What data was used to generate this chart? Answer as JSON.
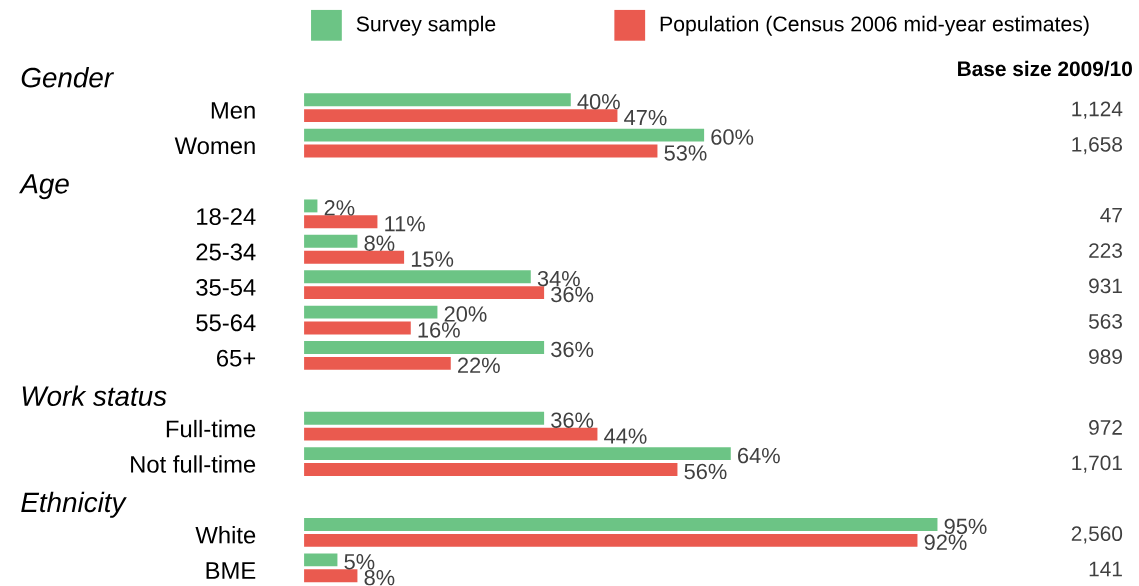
{
  "chart_data": {
    "type": "bar",
    "orientation": "horizontal",
    "categories": [
      null,
      "Men",
      "Women",
      null,
      "18-24",
      "25-34",
      "35-54",
      "55-64",
      "65+",
      null,
      "Full-time",
      "Not full-time",
      null,
      "White",
      "BME"
    ],
    "annotations": [
      "Gender",
      "Age",
      "Work status",
      "Ethnicity"
    ],
    "y2label": "Base size 2009/10",
    "y2_categories": [
      null,
      "1,124",
      "1,658",
      null,
      "47",
      "223",
      "931",
      "563",
      "989",
      null,
      "972",
      "1,701",
      null,
      "2,560",
      "141"
    ],
    "tick_labels": "y",
    "legend": "top",
    "series": [
      {
        "name": "Survey sample",
        "color": "#6cc485",
        "values": [
          null,
          40,
          60,
          null,
          2,
          8,
          34,
          20,
          36,
          null,
          36,
          64,
          null,
          95,
          5
        ],
        "value_labels": [
          null,
          "40%",
          "60%",
          null,
          "2%",
          "8%",
          "34%",
          "20%",
          "36%",
          null,
          "36%",
          "64%",
          null,
          "95%",
          "5%"
        ]
      },
      {
        "name": "Population (Census 2006 mid-year estimates)",
        "color": "#ea5a4f",
        "values": [
          null,
          47,
          53,
          null,
          11,
          15,
          36,
          16,
          22,
          null,
          44,
          56,
          null,
          92,
          8
        ],
        "value_labels": [
          null,
          "47%",
          "53%",
          null,
          "11%",
          "15%",
          "36%",
          "16%",
          "22%",
          null,
          "44%",
          "56%",
          null,
          "92%",
          "8%"
        ]
      }
    ]
  }
}
